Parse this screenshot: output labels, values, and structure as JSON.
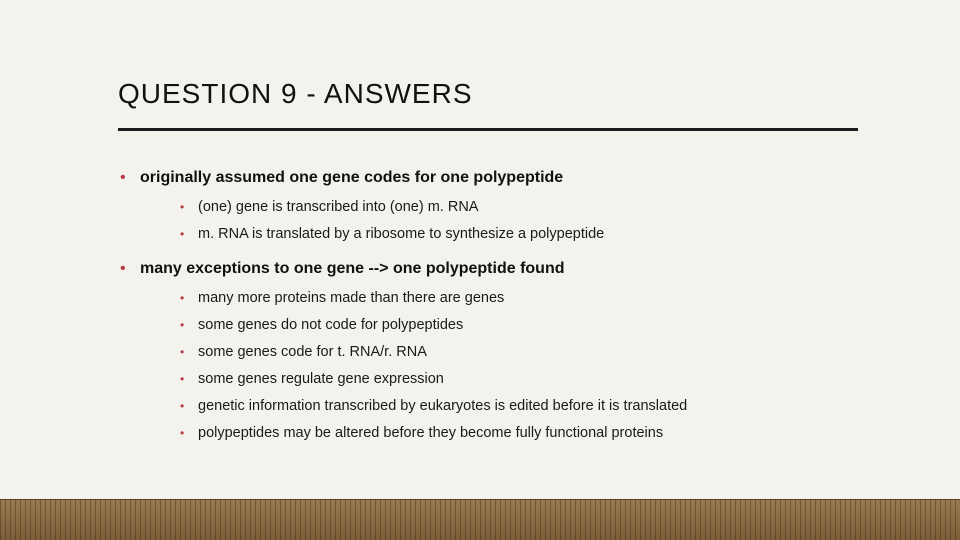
{
  "title": "QUESTION 9 - ANSWERS",
  "colors": {
    "background": "#f4f2ec",
    "bullet": "#b73a47",
    "text": "#111111",
    "rule": "#1a1a1a",
    "floor_top": "#9a7a50",
    "floor_bottom": "#7e5e38"
  },
  "typography": {
    "title_fontsize_pt": 21,
    "level1_fontsize_pt": 12,
    "level2_fontsize_pt": 11,
    "font_family": "Arial"
  },
  "bullets": [
    {
      "text": "originally assumed one gene codes for one polypeptide",
      "children": [
        "(one) gene is transcribed into (one) m. RNA",
        "m. RNA is translated by a ribosome to synthesize a polypeptide"
      ]
    },
    {
      "text": "many exceptions to one gene --> one polypeptide found",
      "children": [
        "many more proteins made than there are genes",
        "some genes do not code for polypeptides",
        "some genes code for t. RNA/r. RNA",
        "some genes regulate gene expression",
        "genetic information transcribed by eukaryotes is edited before it is translated",
        "polypeptides may be altered before they become fully functional proteins"
      ]
    }
  ]
}
